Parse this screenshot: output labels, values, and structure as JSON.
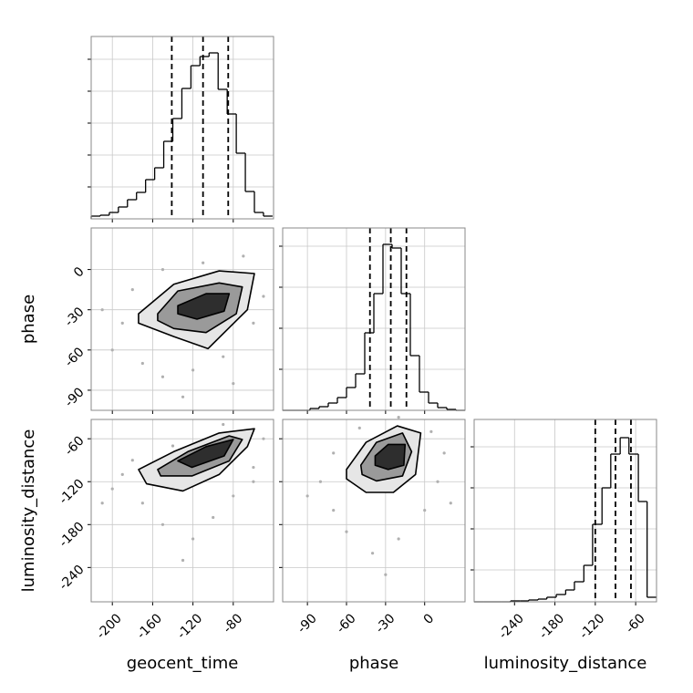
{
  "chart_data": [
    {
      "type": "histogram",
      "xlim": [
        -221,
        -40
      ],
      "ylim": [
        0,
        200
      ],
      "xticks": [
        -200,
        -160,
        -120,
        -80
      ],
      "yticks": [
        35,
        70,
        105,
        140,
        175
      ],
      "bins": [
        -221,
        -212,
        -203,
        -194,
        -185,
        -176,
        -167,
        -158,
        -149,
        -140,
        -131,
        -122,
        -113,
        -104,
        -95,
        -86,
        -77,
        -68,
        -59,
        -50,
        -41
      ],
      "values": [
        3,
        4,
        7,
        13,
        21,
        29,
        43,
        56,
        85,
        110,
        143,
        168,
        178,
        182,
        142,
        115,
        72,
        30,
        7,
        3
      ],
      "quantiles": [
        -141,
        -110,
        -85
      ],
      "color": "#000000"
    },
    {
      "type": "scatter",
      "xlim": [
        -221,
        -40
      ],
      "ylim": [
        -105,
        31
      ],
      "xticks": [
        -200,
        -160,
        -120,
        -80
      ],
      "yticks": [
        0,
        -30,
        -60,
        -90
      ],
      "ylabel": "phase",
      "x": [
        -190,
        -200,
        -170,
        -150,
        -120,
        -90,
        -60,
        -50,
        -70,
        -110,
        -150,
        -180,
        -210,
        -130,
        -80
      ],
      "y": [
        -40,
        -60,
        -70,
        -80,
        -75,
        -65,
        -40,
        -20,
        10,
        5,
        0,
        -15,
        -30,
        -95,
        -85
      ],
      "contours": [
        {
          "x": [
            -174,
            -139,
            -94,
            -59,
            -66,
            -105,
            -139,
            -174
          ],
          "y": [
            -33,
            -11,
            -1,
            -3,
            -30,
            -59,
            -50,
            -40
          ]
        },
        {
          "x": [
            -155,
            -135,
            -94,
            -71,
            -77,
            -107,
            -139,
            -155
          ],
          "y": [
            -33,
            -16,
            -10,
            -13,
            -33,
            -47,
            -44,
            -38
          ]
        },
        {
          "x": [
            -135,
            -107,
            -84,
            -89,
            -116,
            -135
          ],
          "y": [
            -27,
            -18,
            -18,
            -31,
            -37,
            -33
          ]
        }
      ]
    },
    {
      "type": "histogram",
      "xlim": [
        -109,
        31
      ],
      "ylim": [
        0,
        200
      ],
      "xticks": [
        -90,
        -60,
        -30,
        0
      ],
      "yticks": [
        45,
        90,
        135,
        180
      ],
      "bins": [
        -109,
        -102,
        -95,
        -88,
        -81,
        -74,
        -67,
        -60,
        -53,
        -46,
        -39,
        -32,
        -25,
        -18,
        -11,
        -4,
        3,
        10,
        17,
        24,
        31
      ],
      "values": [
        0,
        0,
        0,
        2,
        4,
        8,
        14,
        25,
        40,
        85,
        128,
        182,
        178,
        128,
        60,
        20,
        8,
        3,
        1,
        0
      ],
      "quantiles": [
        -42,
        -26,
        -14
      ],
      "color": "#000000"
    },
    {
      "type": "scatter",
      "xlim": [
        -221,
        -40
      ],
      "ylim": [
        -288,
        -33
      ],
      "xticks": [
        -200,
        -160,
        -120,
        -80
      ],
      "yticks": [
        -60,
        -120,
        -180,
        -240
      ],
      "xlabel": "geocent_time",
      "ylabel": "luminosity_distance",
      "x": [
        -200,
        -190,
        -170,
        -150,
        -120,
        -100,
        -80,
        -60,
        -50,
        -90,
        -140,
        -180,
        -130,
        -210,
        -60
      ],
      "y": [
        -130,
        -110,
        -150,
        -180,
        -200,
        -170,
        -140,
        -100,
        -60,
        -40,
        -70,
        -90,
        -230,
        -150,
        -120
      ],
      "contours": [
        {
          "x": [
            -174,
            -139,
            -94,
            -59,
            -66,
            -94,
            -130,
            -166
          ],
          "y": [
            -103,
            -78,
            -52,
            -46,
            -71,
            -110,
            -133,
            -123
          ]
        },
        {
          "x": [
            -155,
            -125,
            -84,
            -71,
            -84,
            -121,
            -152
          ],
          "y": [
            -103,
            -78,
            -56,
            -61,
            -91,
            -112,
            -112
          ]
        },
        {
          "x": [
            -135,
            -107,
            -80,
            -89,
            -121
          ],
          "y": [
            -91,
            -71,
            -61,
            -84,
            -100
          ]
        }
      ]
    },
    {
      "type": "scatter",
      "xlim": [
        -109,
        31
      ],
      "ylim": [
        -288,
        -33
      ],
      "xticks": [
        -90,
        -60,
        -30,
        0
      ],
      "yticks": [
        -60,
        -120,
        -180,
        -240
      ],
      "xlabel": "phase",
      "x": [
        -80,
        -70,
        -60,
        -40,
        -20,
        0,
        10,
        15,
        5,
        -20,
        -50,
        -70,
        -90,
        -30,
        20
      ],
      "y": [
        -120,
        -160,
        -190,
        -220,
        -200,
        -160,
        -120,
        -80,
        -50,
        -30,
        -45,
        -80,
        -140,
        -250,
        -150
      ],
      "contours": [
        {
          "x": [
            -60,
            -45,
            -21,
            -3,
            -7,
            -24,
            -45,
            -60
          ],
          "y": [
            -103,
            -65,
            -42,
            -52,
            -110,
            -135,
            -135,
            -116
          ]
        },
        {
          "x": [
            -49,
            -37,
            -17,
            -10,
            -17,
            -37,
            -48
          ],
          "y": [
            -97,
            -65,
            -52,
            -78,
            -112,
            -119,
            -110
          ]
        },
        {
          "x": [
            -38,
            -28,
            -15,
            -16,
            -28,
            -38
          ],
          "y": [
            -84,
            -68,
            -68,
            -97,
            -103,
            -97
          ]
        }
      ]
    },
    {
      "type": "histogram",
      "xlim": [
        -300,
        -29
      ],
      "ylim": [
        0,
        200
      ],
      "xticks": [
        -240,
        -180,
        -120,
        -60
      ],
      "yticks": [
        35,
        80,
        125,
        170
      ],
      "xlabel": "luminosity_distance",
      "bins": [
        -300,
        -286,
        -273,
        -259,
        -246,
        -232,
        -219,
        -205,
        -192,
        -178,
        -164,
        -151,
        -137,
        -124,
        -110,
        -97,
        -83,
        -70,
        -56,
        -43,
        -29
      ],
      "values": [
        0,
        0,
        0,
        0,
        1,
        1,
        2,
        3,
        5,
        8,
        13,
        22,
        40,
        85,
        125,
        162,
        180,
        162,
        110,
        5
      ],
      "quantiles": [
        -120,
        -90,
        -67
      ],
      "color": "#000000"
    }
  ]
}
